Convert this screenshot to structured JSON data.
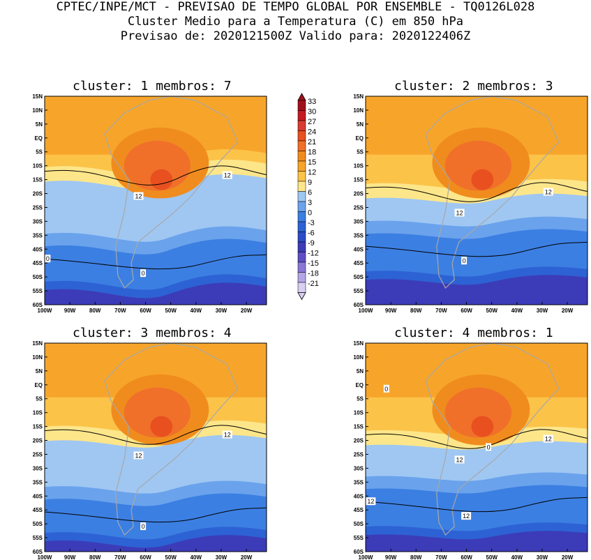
{
  "header": {
    "line1": "CPTEC/INPE/MCT - PREVISAO DE TEMPO GLOBAL POR ENSEMBLE - TQ0126L028",
    "line2": "Cluster Medio para a Temperatura (C) em 850 hPa",
    "line3": "Previsao de: 2020121500Z   Valido para: 2020122406Z"
  },
  "panels": [
    {
      "title": "cluster: 1  membros: 7",
      "contour_labels": [
        "12",
        "12",
        "0",
        "0"
      ]
    },
    {
      "title": "cluster: 2  membros: 3",
      "contour_labels": [
        "12",
        "12",
        "0"
      ]
    },
    {
      "title": "cluster: 3  membros: 4",
      "contour_labels": [
        "12",
        "12",
        "0"
      ]
    },
    {
      "title": "cluster: 4  membros: 1",
      "contour_labels": [
        "12",
        "12",
        "12",
        "12",
        "0",
        "0"
      ]
    }
  ],
  "axes": {
    "lat_labels": [
      "15N",
      "10N",
      "5N",
      "EQ",
      "5S",
      "10S",
      "15S",
      "20S",
      "25S",
      "30S",
      "35S",
      "40S",
      "45S",
      "50S",
      "55S",
      "60S"
    ],
    "lon_labels": [
      "100W",
      "90W",
      "80W",
      "70W",
      "60W",
      "50W",
      "40W",
      "30W",
      "20W"
    ]
  },
  "colorbar": {
    "labels": [
      "33",
      "30",
      "27",
      "24",
      "21",
      "18",
      "15",
      "12",
      "9",
      "6",
      "3",
      "0",
      "-3",
      "-6",
      "-9",
      "-12",
      "-15",
      "-18",
      "-21"
    ],
    "colors": [
      "#a0101a",
      "#c41a22",
      "#d93b30",
      "#e85020",
      "#f0702a",
      "#f08c1e",
      "#f7a52a",
      "#fcc349",
      "#fde68a",
      "#9fc7f2",
      "#6aa2ec",
      "#3c7fe2",
      "#2d62d4",
      "#2a4cc6",
      "#3c3cb8",
      "#5e4fc4",
      "#8a78d6",
      "#b4a6e6",
      "#d8cff2"
    ]
  },
  "fields": [
    {
      "bands": [
        0.08,
        0.34,
        0.72,
        0.93
      ],
      "dip": 0.55
    },
    {
      "bands": [
        0.08,
        0.42,
        0.66,
        0.88
      ],
      "dip": 0.35
    },
    {
      "bands": [
        0.06,
        0.4,
        0.75,
        0.95
      ],
      "dip": 0.45
    },
    {
      "bands": [
        0.06,
        0.42,
        0.7,
        0.92
      ],
      "dip": 0.3
    }
  ]
}
